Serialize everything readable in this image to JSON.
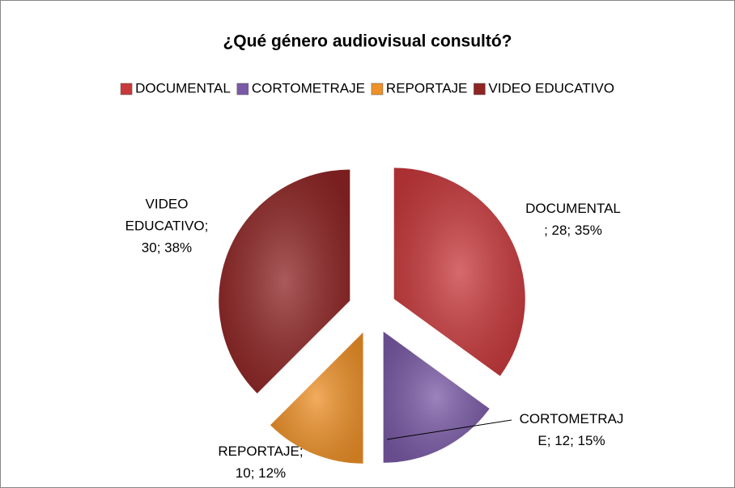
{
  "chart_data": {
    "type": "pie",
    "title": "¿Qué género audiovisual consultó?",
    "categories": [
      "DOCUMENTAL",
      "CORTOMETRAJE",
      "REPORTAJE",
      "VIDEO EDUCATIVO"
    ],
    "values": [
      28,
      12,
      10,
      30
    ],
    "value_labels": [
      [
        "DOCUMENTAL",
        "; 28; 35%"
      ],
      [
        "CORTOMETRAJ",
        "E; 12; 15%"
      ],
      [
        "REPORTAJE;",
        "10; 12%"
      ],
      [
        "VIDEO",
        "EDUCATIVO;",
        "30; 38%"
      ]
    ],
    "colors": [
      "#c8393c",
      "#7a5aa6",
      "#ee9128",
      "#8e2424"
    ],
    "legend": "top"
  }
}
